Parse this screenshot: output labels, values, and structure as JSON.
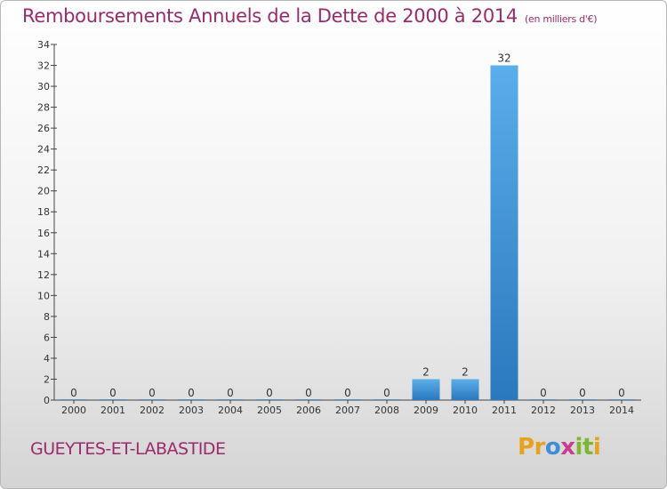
{
  "chart_data": {
    "type": "bar",
    "title": "Remboursements Annuels de la Dette de 2000 à 2014",
    "unit_note": "(en milliers d'€)",
    "categories": [
      "2000",
      "2001",
      "2002",
      "2003",
      "2004",
      "2005",
      "2006",
      "2007",
      "2008",
      "2009",
      "2010",
      "2011",
      "2012",
      "2013",
      "2014"
    ],
    "values": [
      0,
      0,
      0,
      0,
      0,
      0,
      0,
      0,
      0,
      2,
      2,
      32,
      0,
      0,
      0
    ],
    "ylim": [
      0,
      34
    ],
    "yticks": [
      0,
      2,
      4,
      6,
      8,
      10,
      12,
      14,
      16,
      18,
      20,
      22,
      24,
      26,
      28,
      30,
      32,
      34
    ],
    "xlabel": "",
    "ylabel": "",
    "bar_color": "#3a8fd6"
  },
  "footer": {
    "commune": "GUEYTES-ET-LABASTIDE",
    "logo_letters": [
      "P",
      "r",
      "o",
      "x",
      "i",
      "t",
      "i"
    ],
    "logo_colors": [
      "#e8a21a",
      "#e8a21a",
      "#3a8fd6",
      "#d03a8c",
      "#7cb82e",
      "#7cb82e",
      "#e8a21a"
    ]
  }
}
